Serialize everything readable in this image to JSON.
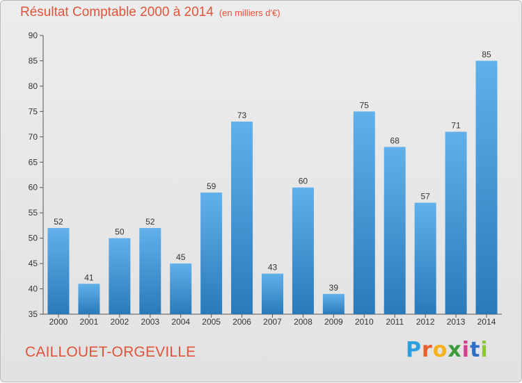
{
  "title": "Résultat Comptable 2000 à 2014",
  "subtitle": "(en milliers d'€)",
  "footer": "CAILLOUET-ORGEVILLE",
  "logo": {
    "letters": [
      "P",
      "r",
      "o",
      "x",
      "i",
      "t",
      "i"
    ],
    "colors": [
      "#2aa0e0",
      "#e8602c",
      "#f5b21c",
      "#3a9b3a",
      "#d43c8c",
      "#2f6fc8",
      "#8cc43c"
    ]
  },
  "colors": {
    "bar_top": "#62b0ea",
    "bar_bottom": "#2a7ab9",
    "text_accent": "#e0553a"
  },
  "chart_data": {
    "type": "bar",
    "categories": [
      "2000",
      "2001",
      "2002",
      "2003",
      "2004",
      "2005",
      "2006",
      "2007",
      "2008",
      "2009",
      "2010",
      "2011",
      "2012",
      "2013",
      "2014"
    ],
    "values": [
      52,
      41,
      50,
      52,
      45,
      59,
      73,
      43,
      60,
      39,
      75,
      68,
      57,
      71,
      85
    ],
    "ylim": [
      35,
      90
    ],
    "yticks": [
      35,
      40,
      45,
      50,
      55,
      60,
      65,
      70,
      75,
      80,
      85,
      90
    ],
    "grid": false
  }
}
